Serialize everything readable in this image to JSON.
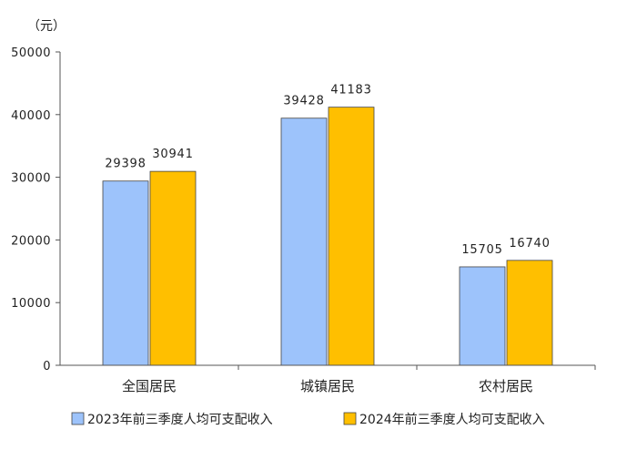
{
  "chart_data": {
    "type": "bar",
    "unit_label": "（元）",
    "categories": [
      "全国居民",
      "城镇居民",
      "农村居民"
    ],
    "series": [
      {
        "name": "2023年前三季度人均可支配收入",
        "color": "#9DC3FB",
        "values": [
          29398,
          39428,
          15705
        ],
        "labels": [
          "29398",
          "39428",
          "15705"
        ]
      },
      {
        "name": "2024年前三季度人均可支配收入",
        "color": "#FFBF00",
        "values": [
          30941,
          41183,
          16740
        ],
        "labels": [
          "30941",
          "41183",
          "16740"
        ]
      }
    ],
    "ylim": [
      0,
      50000
    ],
    "yticks": [
      0,
      10000,
      20000,
      30000,
      40000,
      50000
    ],
    "ytick_labels": [
      "0",
      "10000",
      "20000",
      "30000",
      "40000",
      "50000"
    ],
    "legend": "bottom",
    "grid": false
  }
}
